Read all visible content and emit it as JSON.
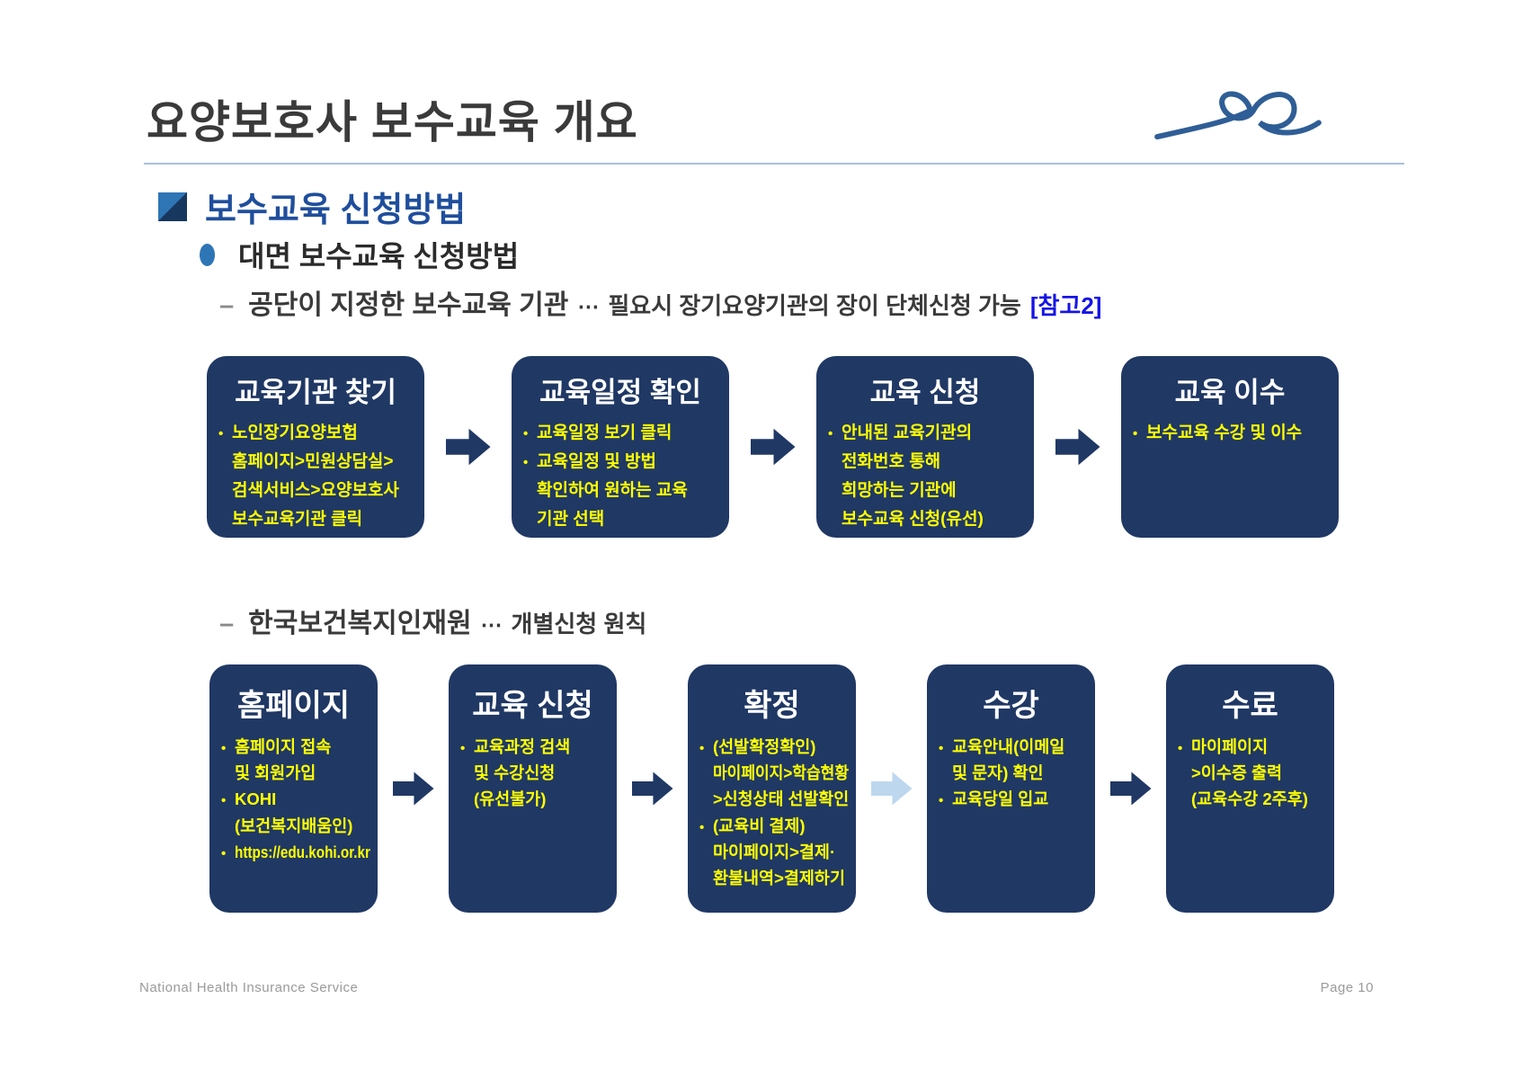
{
  "colors": {
    "box_navy": "#203864",
    "content_yellow": "#FFFF00",
    "arrow_navy": "#203864",
    "arrow_light": "#BDD7EE",
    "heading_blue": "#1F4E9C",
    "ref_blue": "#1414E6",
    "title_dark": "#3A3A3A",
    "rule_blue": "#AAC0DD",
    "footer_gray": "#9A9A9A",
    "logo_navy": "#2F5E96"
  },
  "glyphs": {
    "bullet": "•"
  },
  "header": {
    "title": "요양보호사 보수교육 개요",
    "logo": "nhis-heart-logo"
  },
  "section": {
    "heading": "보수교육 신청방법",
    "bullet_item": "대면 보수교육 신청방법",
    "sub_item_1": {
      "dash": "–",
      "main": "공단이 지정한 보수교육 기관",
      "ellipsis": "⋯",
      "note": "필요시 장기요양기관의 장이 단체신청 가능",
      "ref": "[참고2]"
    },
    "sub_item_2": {
      "dash": "–",
      "main": "한국보건복지인재원",
      "ellipsis": "⋯",
      "note": "개별신청 원칙"
    }
  },
  "flow1": {
    "steps": [
      {
        "title": "교육기관 찾기",
        "items": [
          [
            "노인장기요양보험",
            "홈페이지>민원상담실>",
            "검색서비스>요양보호사",
            "보수교육기관 클릭"
          ]
        ]
      },
      {
        "title": "교육일정 확인",
        "items": [
          [
            "교육일정 보기 클릭"
          ],
          [
            "교육일정 및 방법",
            "확인하여 원하는 교육",
            "기관 선택"
          ]
        ]
      },
      {
        "title": "교육 신청",
        "items": [
          [
            "안내된 교육기관의",
            "전화번호 통해",
            "희망하는 기관에",
            "보수교육 신청(유선)"
          ]
        ]
      },
      {
        "title": "교육 이수",
        "items": [
          [
            "보수교육 수강 및 이수"
          ]
        ]
      }
    ],
    "arrows": [
      "navy",
      "navy",
      "navy"
    ]
  },
  "flow2": {
    "steps": [
      {
        "title": "홈페이지",
        "items": [
          [
            "홈페이지 접속",
            "및 회원가입"
          ],
          [
            "KOHI",
            "(보건복지배움인)"
          ],
          [
            "https://edu.kohi.or.kr"
          ]
        ]
      },
      {
        "title": "교육 신청",
        "items": [
          [
            "교육과정 검색",
            "및 수강신청",
            "(유선불가)"
          ]
        ]
      },
      {
        "title": "확정",
        "items": [
          [
            "(선발확정확인)",
            "마이페이지>학습현황",
            ">신청상태 선발확인"
          ],
          [
            "(교육비 결제)",
            "마이페이지>결제·",
            "환불내역>결제하기"
          ]
        ]
      },
      {
        "title": "수강",
        "items": [
          [
            "교육안내(이메일",
            "및 문자) 확인"
          ],
          [
            "교육당일 입교"
          ]
        ]
      },
      {
        "title": "수료",
        "items": [
          [
            "마이페이지",
            ">이수증 출력",
            "(교육수강 2주후)"
          ]
        ]
      }
    ],
    "arrows": [
      "navy",
      "navy",
      "light",
      "navy"
    ]
  },
  "footer": {
    "left": "National Health Insurance Service",
    "right": "Page 10"
  }
}
